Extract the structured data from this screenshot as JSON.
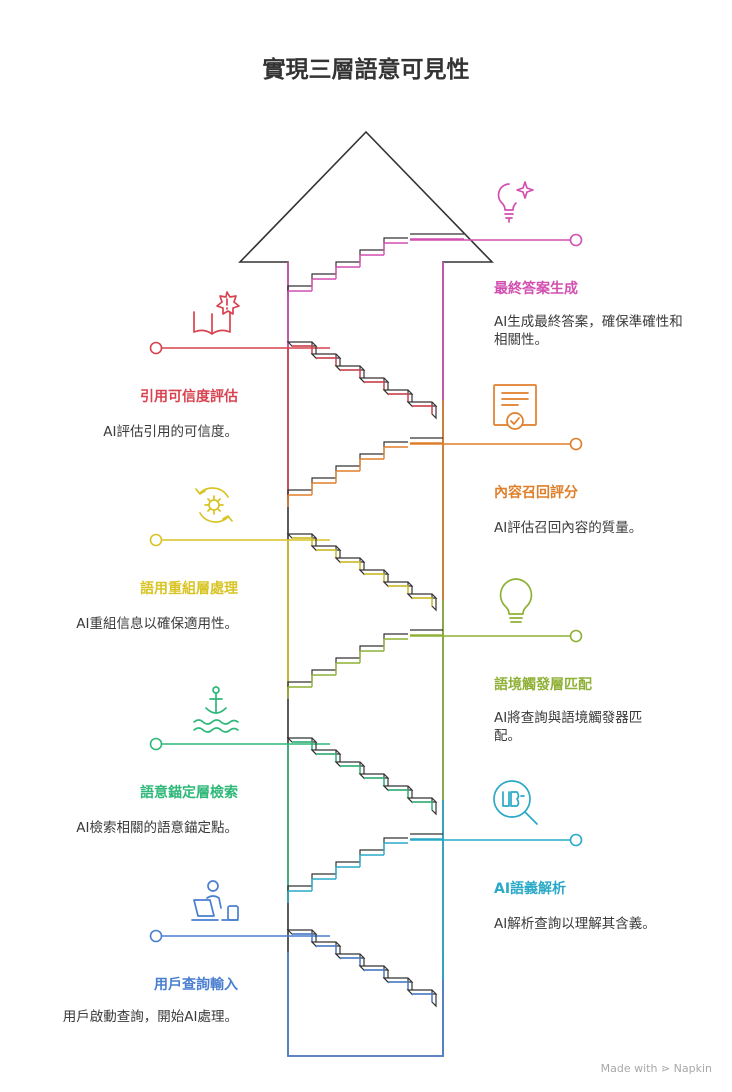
{
  "title": "實現三層語意可見性",
  "steps": [
    {
      "label": "最終答案生成",
      "desc": "AI生成最終答案，確保準確性和相關性。",
      "color": "#d24fb0",
      "icon": "lightbulb-sparkle-icon"
    },
    {
      "label": "引用可信度評估",
      "desc": "AI評估引用的可信度。",
      "color": "#d9434f",
      "icon": "book-alert-icon"
    },
    {
      "label": "內容召回評分",
      "desc": "AI評估召回內容的質量。",
      "color": "#df7f2a",
      "icon": "certificate-icon"
    },
    {
      "label": "語用重組層處理",
      "desc": "AI重組信息以確保適用性。",
      "color": "#d8c424",
      "icon": "gear-cycle-icon"
    },
    {
      "label": "語境觸發層匹配",
      "desc": "AI將查詢與語境觸發器匹配。",
      "color": "#8fb137",
      "icon": "lightbulb-icon"
    },
    {
      "label": "語意錨定層檢索",
      "desc": "AI檢索相關的語意錨定點。",
      "color": "#2fb879",
      "icon": "anchor-icon"
    },
    {
      "label": "AI語義解析",
      "desc": "AI解析查詢以理解其含義。",
      "color": "#29a9c7",
      "icon": "magnifier-book-icon"
    },
    {
      "label": "用戶查詢輸入",
      "desc": "用戶啟動查詢，開始AI處理。",
      "color": "#4a7fd0",
      "icon": "user-laptop-icon"
    }
  ],
  "footer": "Made with ⋗ Napkin"
}
